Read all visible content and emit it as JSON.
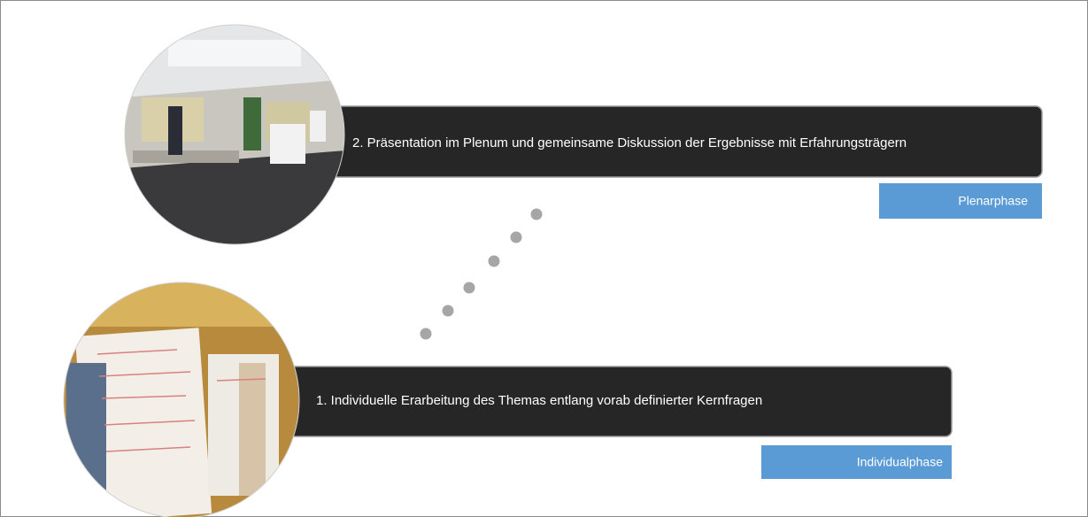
{
  "stages": [
    {
      "description": "2. Präsentation im Plenum und gemeinsame Diskussion der Ergebnisse mit Erfahrungsträgern",
      "phase": "Plenarphase"
    },
    {
      "description": "1. Individuelle Erarbeitung des Themas entlang vorab definierter Kernfragen",
      "phase": "Individualphase"
    }
  ]
}
